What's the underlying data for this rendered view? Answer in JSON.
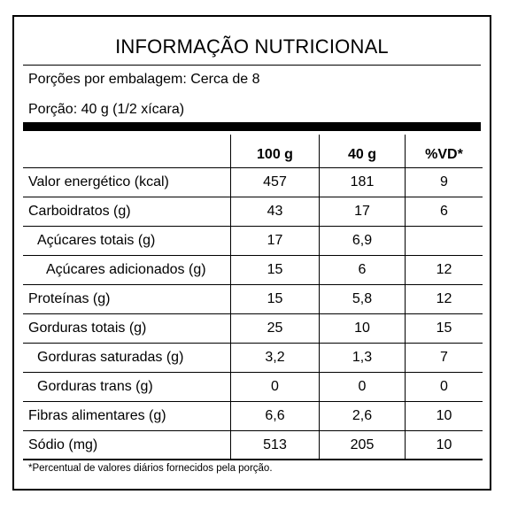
{
  "label": {
    "title": "INFORMAÇÃO NUTRICIONAL",
    "servings_per_package": "Porções por embalagem: Cerca de 8",
    "serving_size": "Porção: 40 g (1/2 xícara)",
    "columns": {
      "name": "",
      "per_100g": "100 g",
      "per_portion": "40 g",
      "daily_value": "%VD*"
    },
    "rows": [
      {
        "name": "Valor energético (kcal)",
        "per_100g": "457",
        "per_portion": "181",
        "daily_value": "9"
      },
      {
        "name": "Carboidratos (g)",
        "per_100g": "43",
        "per_portion": "17",
        "daily_value": "6"
      },
      {
        "name": "Açúcares totais (g)",
        "per_100g": "17",
        "per_portion": "6,9",
        "daily_value": ""
      },
      {
        "name": "Açúcares adicionados (g)",
        "per_100g": "15",
        "per_portion": "6",
        "daily_value": "12"
      },
      {
        "name": "Proteínas (g)",
        "per_100g": "15",
        "per_portion": "5,8",
        "daily_value": "12"
      },
      {
        "name": "Gorduras totais (g)",
        "per_100g": "25",
        "per_portion": "10",
        "daily_value": "15"
      },
      {
        "name": "Gorduras saturadas (g)",
        "per_100g": "3,2",
        "per_portion": "1,3",
        "daily_value": "7"
      },
      {
        "name": "Gorduras trans (g)",
        "per_100g": "0",
        "per_portion": "0",
        "daily_value": "0"
      },
      {
        "name": "Fibras alimentares (g)",
        "per_100g": "6,6",
        "per_portion": "2,6",
        "daily_value": "10"
      },
      {
        "name": "Sódio (mg)",
        "per_100g": "513",
        "per_portion": "205",
        "daily_value": "10"
      }
    ],
    "footnote": "*Percentual de valores diários fornecidos pela porção."
  }
}
